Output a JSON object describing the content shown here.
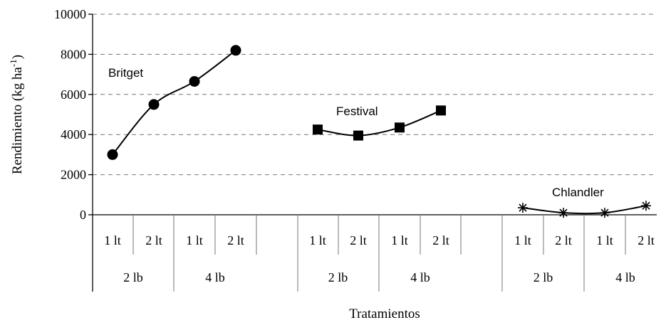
{
  "chart_data": {
    "type": "line",
    "ylabel": "Rendimiento (kg ha-1)",
    "xlabel": "Tratamientos",
    "ylim": [
      0,
      10000
    ],
    "y_ticks": [
      0,
      2000,
      4000,
      6000,
      8000,
      10000
    ],
    "grid": "horizontal dashed",
    "categories_level1": [
      "1 lt",
      "2 lt",
      "1 lt",
      "2 lt",
      "",
      "1 lt",
      "2 lt",
      "1 lt",
      "2 lt",
      "",
      "1 lt",
      "2 lt",
      "1 lt",
      "2 lt"
    ],
    "categories_level2": [
      "2  lb",
      "4  lb",
      "2 lb",
      "4 lb",
      "2 lb",
      "4 lb"
    ],
    "series": [
      {
        "name": "Britget",
        "marker": "circle",
        "values": [
          3000,
          5500,
          6650,
          8200,
          null,
          null,
          null,
          null,
          null,
          null,
          null,
          null,
          null,
          null
        ]
      },
      {
        "name": "Festival",
        "marker": "square",
        "values": [
          null,
          null,
          null,
          null,
          null,
          4250,
          3950,
          4350,
          5200,
          null,
          null,
          null,
          null,
          null
        ]
      },
      {
        "name": "Chlandler",
        "marker": "star",
        "values": [
          null,
          null,
          null,
          null,
          null,
          null,
          null,
          null,
          null,
          null,
          350,
          100,
          100,
          450
        ]
      }
    ]
  }
}
